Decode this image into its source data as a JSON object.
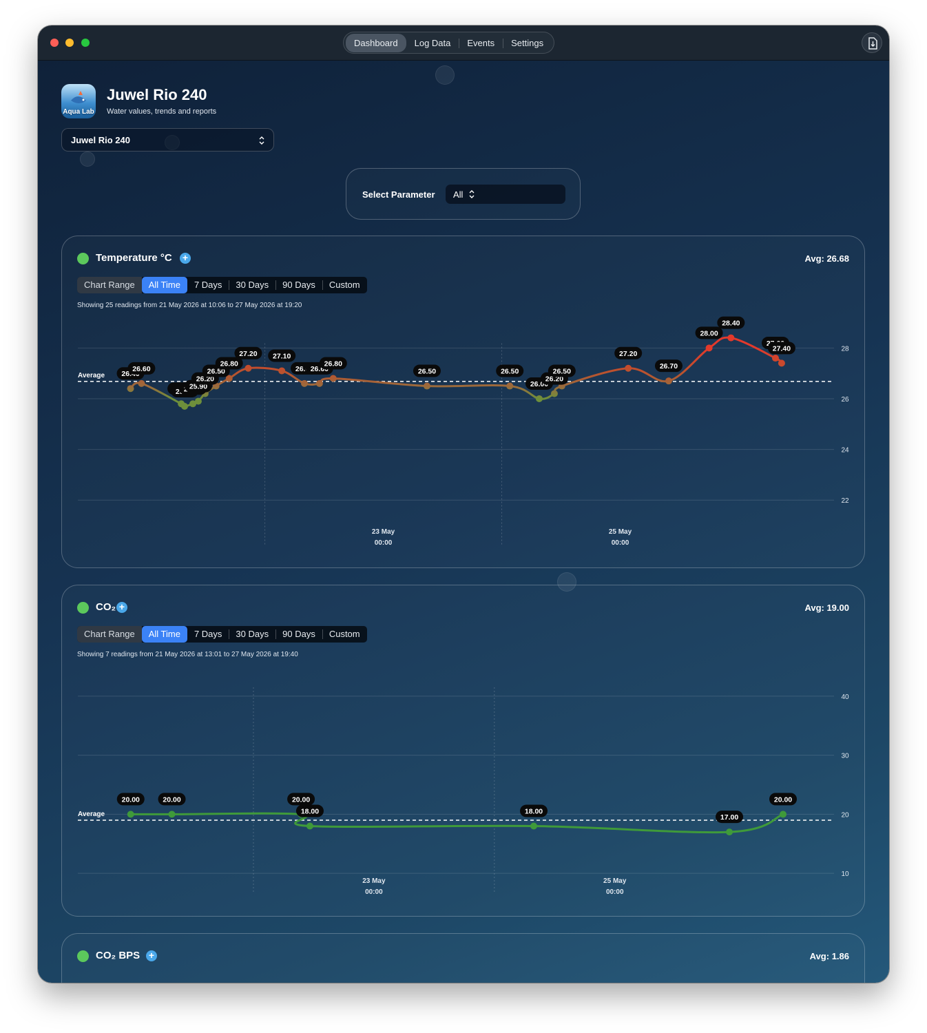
{
  "window": {
    "tabs": [
      "Dashboard",
      "Log Data",
      "Events",
      "Settings"
    ],
    "active_tab": 0
  },
  "header": {
    "logo": "Aqua Lab",
    "title": "Juwel Rio 240",
    "subtitle": "Water values, trends and reports"
  },
  "tank_select": "Juwel Rio 240",
  "parameter": {
    "label": "Select Parameter",
    "value": "All"
  },
  "range_control": {
    "label": "Chart Range",
    "options": [
      "All Time",
      "7 Days",
      "30 Days",
      "90 Days",
      "Custom"
    ],
    "active": 0
  },
  "chart_data": [
    {
      "type": "line",
      "title": "Temperature °C",
      "status_color": "#5cc85c",
      "avg_label": "Avg: 26.68",
      "caption": "Showing 25 readings from 21 May 2026 at 10:06 to 27 May 2026 at 19:20",
      "average": 26.68,
      "average_label": "Average",
      "x": [
        "2026-05-21T20:47",
        "2026-05-21T23:00",
        "2026-05-22T07:03",
        "2026-05-22T07:44",
        "2026-05-22T09:25",
        "2026-05-22T10:31",
        "2026-05-22T11:54",
        "2026-05-22T14:07",
        "2026-05-22T16:46",
        "2026-05-22T20:38",
        "2026-05-23T03:26",
        "2026-05-23T08:01",
        "2026-05-23T11:04",
        "2026-05-23T13:51",
        "2026-05-24T08:51",
        "2026-05-25T01:38",
        "2026-05-25T07:36",
        "2026-05-25T10:40",
        "2026-05-25T12:11",
        "2026-05-26T01:38",
        "2026-05-26T09:50",
        "2026-05-26T18:01",
        "2026-05-26T22:27",
        "2026-05-27T07:28",
        "2026-05-27T08:43"
      ],
      "values": [
        26.4,
        26.6,
        25.8,
        25.7,
        25.8,
        25.9,
        26.2,
        26.5,
        26.8,
        27.2,
        27.1,
        26.6,
        26.6,
        26.8,
        26.5,
        26.5,
        26.0,
        26.2,
        26.5,
        27.2,
        26.7,
        28.0,
        28.4,
        27.6,
        27.4
      ],
      "value_labels": [
        "26.40",
        "26.60",
        "25.80",
        "25.70",
        "25.80",
        "25.90",
        "26.20",
        "26.50",
        "26.80",
        "27.20",
        "27.10",
        "26.60",
        "26.60",
        "26.80",
        "26.50",
        "26.50",
        "26.00",
        "26.20",
        "26.50",
        "27.20",
        "26.70",
        "28.00",
        "28.40",
        "27.60",
        "27.40"
      ],
      "color_stops": [
        {
          "value": 26,
          "color": "#6e8f3b"
        },
        {
          "value": 26.5,
          "color": "#9c6a3c"
        },
        {
          "value": 27,
          "color": "#b9532e"
        },
        {
          "value": 28,
          "color": "#e3392b"
        }
      ],
      "xlim": [
        "2026-05-21T10:06",
        "2026-05-27T19:20"
      ],
      "xticks": [
        {
          "value": "2026-05-23T00:00",
          "label": [
            "23 May",
            "00:00"
          ]
        },
        {
          "value": "2026-05-25T00:00",
          "label": [
            "25 May",
            "00:00"
          ]
        }
      ],
      "ylim": [
        21,
        29
      ],
      "yticks": [
        22,
        24,
        26,
        28
      ],
      "grid": true
    },
    {
      "type": "line",
      "title": "CO₂",
      "status_color": "#5cc85c",
      "avg_label": "Avg: 19.00",
      "caption": "Showing 7 readings from 21 May 2026 at 13:01 to 27 May 2026 at 19:40",
      "average": 19,
      "average_label": "Average",
      "x": [
        "2026-05-21T23:33",
        "2026-05-22T07:45",
        "2026-05-23T09:29",
        "2026-05-23T11:15",
        "2026-05-25T07:51",
        "2026-05-26T22:49",
        "2026-05-27T09:31"
      ],
      "values": [
        20,
        20,
        20,
        18,
        18,
        17,
        20
      ],
      "value_labels": [
        "20.00",
        "20.00",
        "20.00",
        "18.00",
        "18.00",
        "17.00",
        "20.00"
      ],
      "color": "#3f9a3a",
      "xlim": [
        "2026-05-21T13:01",
        "2026-05-27T19:40"
      ],
      "xticks": [
        {
          "value": "2026-05-23T00:00",
          "label": [
            "23 May",
            "00:00"
          ]
        },
        {
          "value": "2026-05-25T00:00",
          "label": [
            "25 May",
            "00:00"
          ]
        }
      ],
      "ylim": [
        5,
        45
      ],
      "yticks": [
        10,
        20,
        30,
        40
      ],
      "grid": true
    }
  ],
  "extra_panel": {
    "title": "CO₂ BPS",
    "avg_label": "Avg: 1.86",
    "status_color": "#5cc85c"
  }
}
